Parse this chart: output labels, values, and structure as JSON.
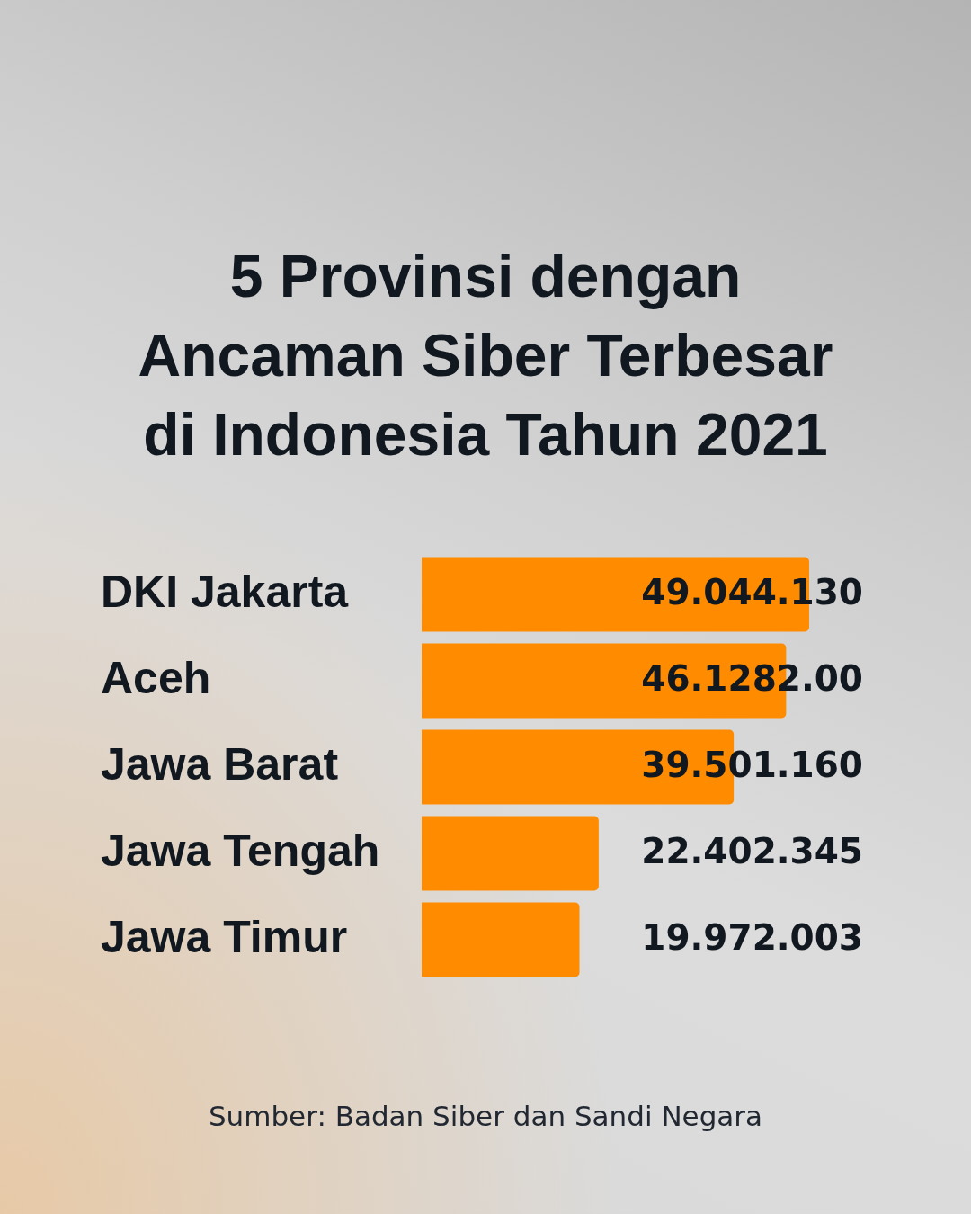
{
  "chart_data": {
    "type": "bar",
    "orientation": "horizontal",
    "title": "5 Provinsi dengan Ancaman Siber Terbesar di Indonesia Tahun 2021",
    "categories": [
      "DKI Jakarta",
      "Aceh",
      "Jawa Barat",
      "Jawa Tengah",
      "Jawa Timur"
    ],
    "values": [
      49044130,
      46128200,
      39501160,
      22402345,
      19972003
    ],
    "value_labels": [
      "49.044.130",
      "46.1282.00",
      "39.501.160",
      "22.402.345",
      "19.972.003"
    ],
    "color": "#ff8c00",
    "tick_labels": "y",
    "annotations": [
      "Sumber: Badan Siber dan Sandi Negara"
    ]
  }
}
